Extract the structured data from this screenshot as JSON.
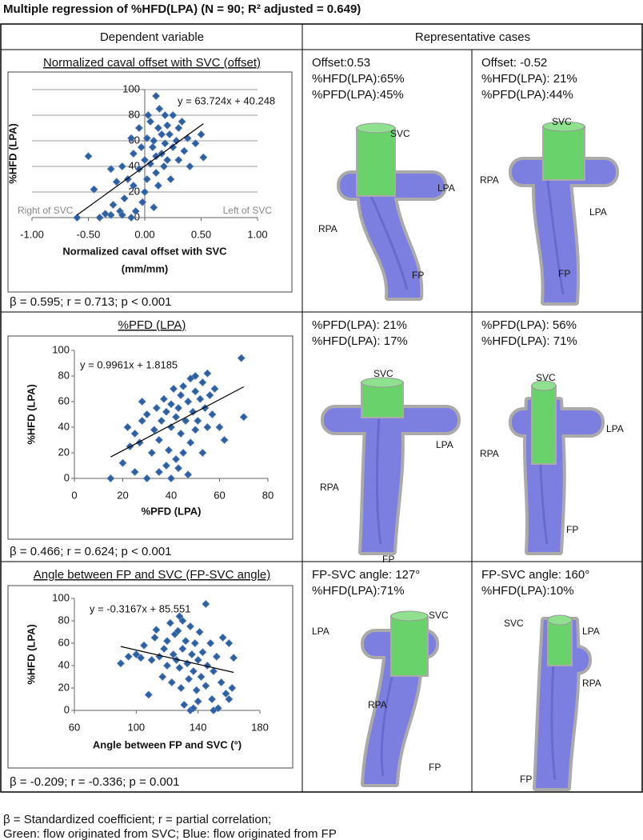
{
  "title": "Multiple regression of %HFD(LPA)  (N = 90; R² adjusted = 0.649)",
  "header": {
    "dependent_variable": "Dependent variable",
    "representative_cases": "Representative cases"
  },
  "rows": [
    {
      "variable": "Normalized caval offset with SVC (offset)",
      "stats": "β = 0.595; r = 0.713; p < 0.001",
      "cases": [
        {
          "lines": [
            "Offset:0.53",
            "%HFD(LPA):65%",
            "%PFD(LPA):45%"
          ],
          "labels": [
            "SVC",
            "LPA",
            "RPA",
            "FP"
          ]
        },
        {
          "lines": [
            "Offset: -0.52",
            "%HFD(LPA): 21%",
            "%PFD(LPA):44%"
          ],
          "labels": [
            "SVC",
            "RPA",
            "LPA",
            "FP"
          ]
        }
      ]
    },
    {
      "variable": "%PFD (LPA)",
      "stats": "β = 0.466; r = 0.624; p < 0.001",
      "cases": [
        {
          "lines": [
            "%PFD(LPA): 21%",
            "%HFD(LPA): 17%"
          ],
          "labels": [
            "SVC",
            "LPA",
            "RPA",
            "FP"
          ]
        },
        {
          "lines": [
            "%PFD(LPA): 56%",
            "%HFD(LPA): 71%"
          ],
          "labels": [
            "SVC",
            "LPA",
            "RPA",
            "FP"
          ]
        }
      ]
    },
    {
      "variable": "Angle between FP and SVC (FP-SVC angle)",
      "stats": "β = -0.209; r = -0.336; p = 0.001",
      "cases": [
        {
          "lines": [
            "FP-SVC angle: 127°",
            "%HFD(LPA):71%"
          ],
          "labels": [
            "SVC",
            "LPA",
            "RPA",
            "FP"
          ]
        },
        {
          "lines": [
            "FP-SVC angle: 160°",
            "%HFD(LPA):10%"
          ],
          "labels": [
            "SVC",
            "LPA",
            "RPA",
            "FP"
          ]
        }
      ]
    }
  ],
  "chart_data": [
    {
      "type": "scatter",
      "color": "#2f5f9e",
      "grid": true,
      "x": [
        -0.6,
        -0.5,
        -0.45,
        -0.4,
        -0.35,
        -0.3,
        -0.3,
        -0.28,
        -0.25,
        -0.22,
        -0.2,
        -0.2,
        -0.18,
        -0.15,
        -0.12,
        -0.12,
        -0.1,
        -0.1,
        -0.08,
        -0.05,
        -0.05,
        -0.03,
        0,
        0,
        0.02,
        0.02,
        0.03,
        0.05,
        0.05,
        0.07,
        0.08,
        0.1,
        0.1,
        0.1,
        0.12,
        0.12,
        0.13,
        0.15,
        0.15,
        0.17,
        0.18,
        0.2,
        0.2,
        0.22,
        0.23,
        0.25,
        0.25,
        0.28,
        0.3,
        0.3,
        0.33,
        0.35,
        0.38,
        0.4,
        0.45,
        0.5,
        0.52,
        0.08,
        -0.02,
        0.18
      ],
      "values": [
        0,
        48,
        22,
        0,
        3,
        2,
        38,
        10,
        28,
        5,
        40,
        2,
        15,
        30,
        0,
        62,
        25,
        50,
        5,
        38,
        70,
        55,
        45,
        20,
        30,
        62,
        80,
        42,
        75,
        55,
        60,
        35,
        95,
        48,
        70,
        25,
        85,
        50,
        65,
        40,
        58,
        45,
        72,
        65,
        30,
        55,
        80,
        60,
        45,
        70,
        75,
        52,
        62,
        40,
        58,
        65,
        47,
        8,
        12,
        80
      ],
      "xlim": [
        -1,
        1
      ],
      "xticks": [
        {
          "value": -1,
          "label": "-1.00"
        },
        {
          "value": -0.5,
          "label": "-0.50"
        },
        {
          "value": 0,
          "label": "0.00"
        },
        {
          "value": 0.5,
          "label": "0.50"
        },
        {
          "value": 1,
          "label": "1.00"
        }
      ],
      "ylim": [
        0,
        100
      ],
      "yticks": [
        0,
        20,
        40,
        60,
        80,
        100
      ],
      "xlabel": [
        "Normalized caval offset with SVC",
        "(mm/mm)"
      ],
      "ylabel": "%HFD (LPA)",
      "trendline": {
        "slope": 63.724,
        "intercept": 40.248,
        "label": "y = 63.724x + 40.248"
      },
      "annotations": [
        "Right of SVC",
        "Left of SVC"
      ]
    },
    {
      "type": "scatter",
      "color": "#2f5f9e",
      "grid": false,
      "x": [
        15,
        20,
        22,
        23,
        25,
        25,
        27,
        28,
        28,
        30,
        30,
        32,
        33,
        34,
        35,
        35,
        36,
        37,
        38,
        38,
        39,
        40,
        40,
        40,
        41,
        42,
        42,
        43,
        44,
        44,
        45,
        45,
        46,
        47,
        48,
        48,
        49,
        50,
        50,
        51,
        52,
        53,
        53,
        54,
        55,
        55,
        56,
        57,
        58,
        60,
        62,
        69,
        70,
        43,
        47,
        50
      ],
      "values": [
        0,
        12,
        40,
        25,
        35,
        5,
        28,
        60,
        45,
        0,
        50,
        20,
        38,
        55,
        5,
        30,
        45,
        62,
        10,
        52,
        22,
        0,
        58,
        40,
        70,
        48,
        15,
        55,
        35,
        65,
        20,
        72,
        45,
        60,
        28,
        78,
        52,
        38,
        68,
        45,
        62,
        20,
        75,
        55,
        40,
        82,
        65,
        50,
        70,
        40,
        30,
        94,
        48,
        8,
        3,
        80
      ],
      "xlim": [
        0,
        80
      ],
      "xticks": [
        0,
        20,
        40,
        60,
        80
      ],
      "ylim": [
        0,
        100
      ],
      "yticks": [
        0,
        20,
        40,
        60,
        80,
        100
      ],
      "xlabel": [
        "%PFD (LPA)"
      ],
      "ylabel": "%HFD (LPA)",
      "trendline": {
        "slope": 0.9961,
        "intercept": 1.8185,
        "label": "y = 0.9961x + 1.8185"
      }
    },
    {
      "type": "scatter",
      "color": "#2f5f9e",
      "grid": false,
      "x": [
        90,
        95,
        100,
        103,
        105,
        108,
        110,
        112,
        113,
        115,
        117,
        118,
        120,
        120,
        122,
        123,
        124,
        125,
        126,
        127,
        128,
        129,
        130,
        130,
        131,
        132,
        133,
        134,
        135,
        135,
        136,
        137,
        138,
        139,
        140,
        140,
        141,
        142,
        143,
        145,
        145,
        146,
        148,
        149,
        150,
        152,
        153,
        155,
        156,
        158,
        160,
        160,
        162,
        163,
        128,
        137,
        150
      ],
      "values": [
        42,
        48,
        50,
        47,
        58,
        14,
        45,
        65,
        72,
        48,
        30,
        55,
        40,
        62,
        78,
        25,
        50,
        68,
        45,
        71,
        38,
        20,
        80,
        55,
        5,
        62,
        42,
        28,
        75,
        0,
        50,
        35,
        60,
        18,
        45,
        8,
        70,
        30,
        52,
        95,
        22,
        40,
        60,
        10,
        35,
        48,
        2,
        25,
        65,
        15,
        10,
        60,
        20,
        47,
        84,
        2,
        0
      ],
      "xlim": [
        60,
        180
      ],
      "xticks": [
        60,
        100,
        140,
        180
      ],
      "ylim": [
        0,
        100
      ],
      "yticks": [
        0,
        20,
        40,
        60,
        80,
        100
      ],
      "xlabel": [
        "Angle between FP and SVC (°)"
      ],
      "ylabel": "%HFD (LPA)",
      "trendline": {
        "slope": -0.3167,
        "intercept": 85.551,
        "label": "y = -0.3167x + 85.551"
      }
    }
  ],
  "footer": [
    "β = Standardized coefficient; r = partial correlation;",
    "Green: flow originated from SVC; Blue: flow originated from FP"
  ]
}
